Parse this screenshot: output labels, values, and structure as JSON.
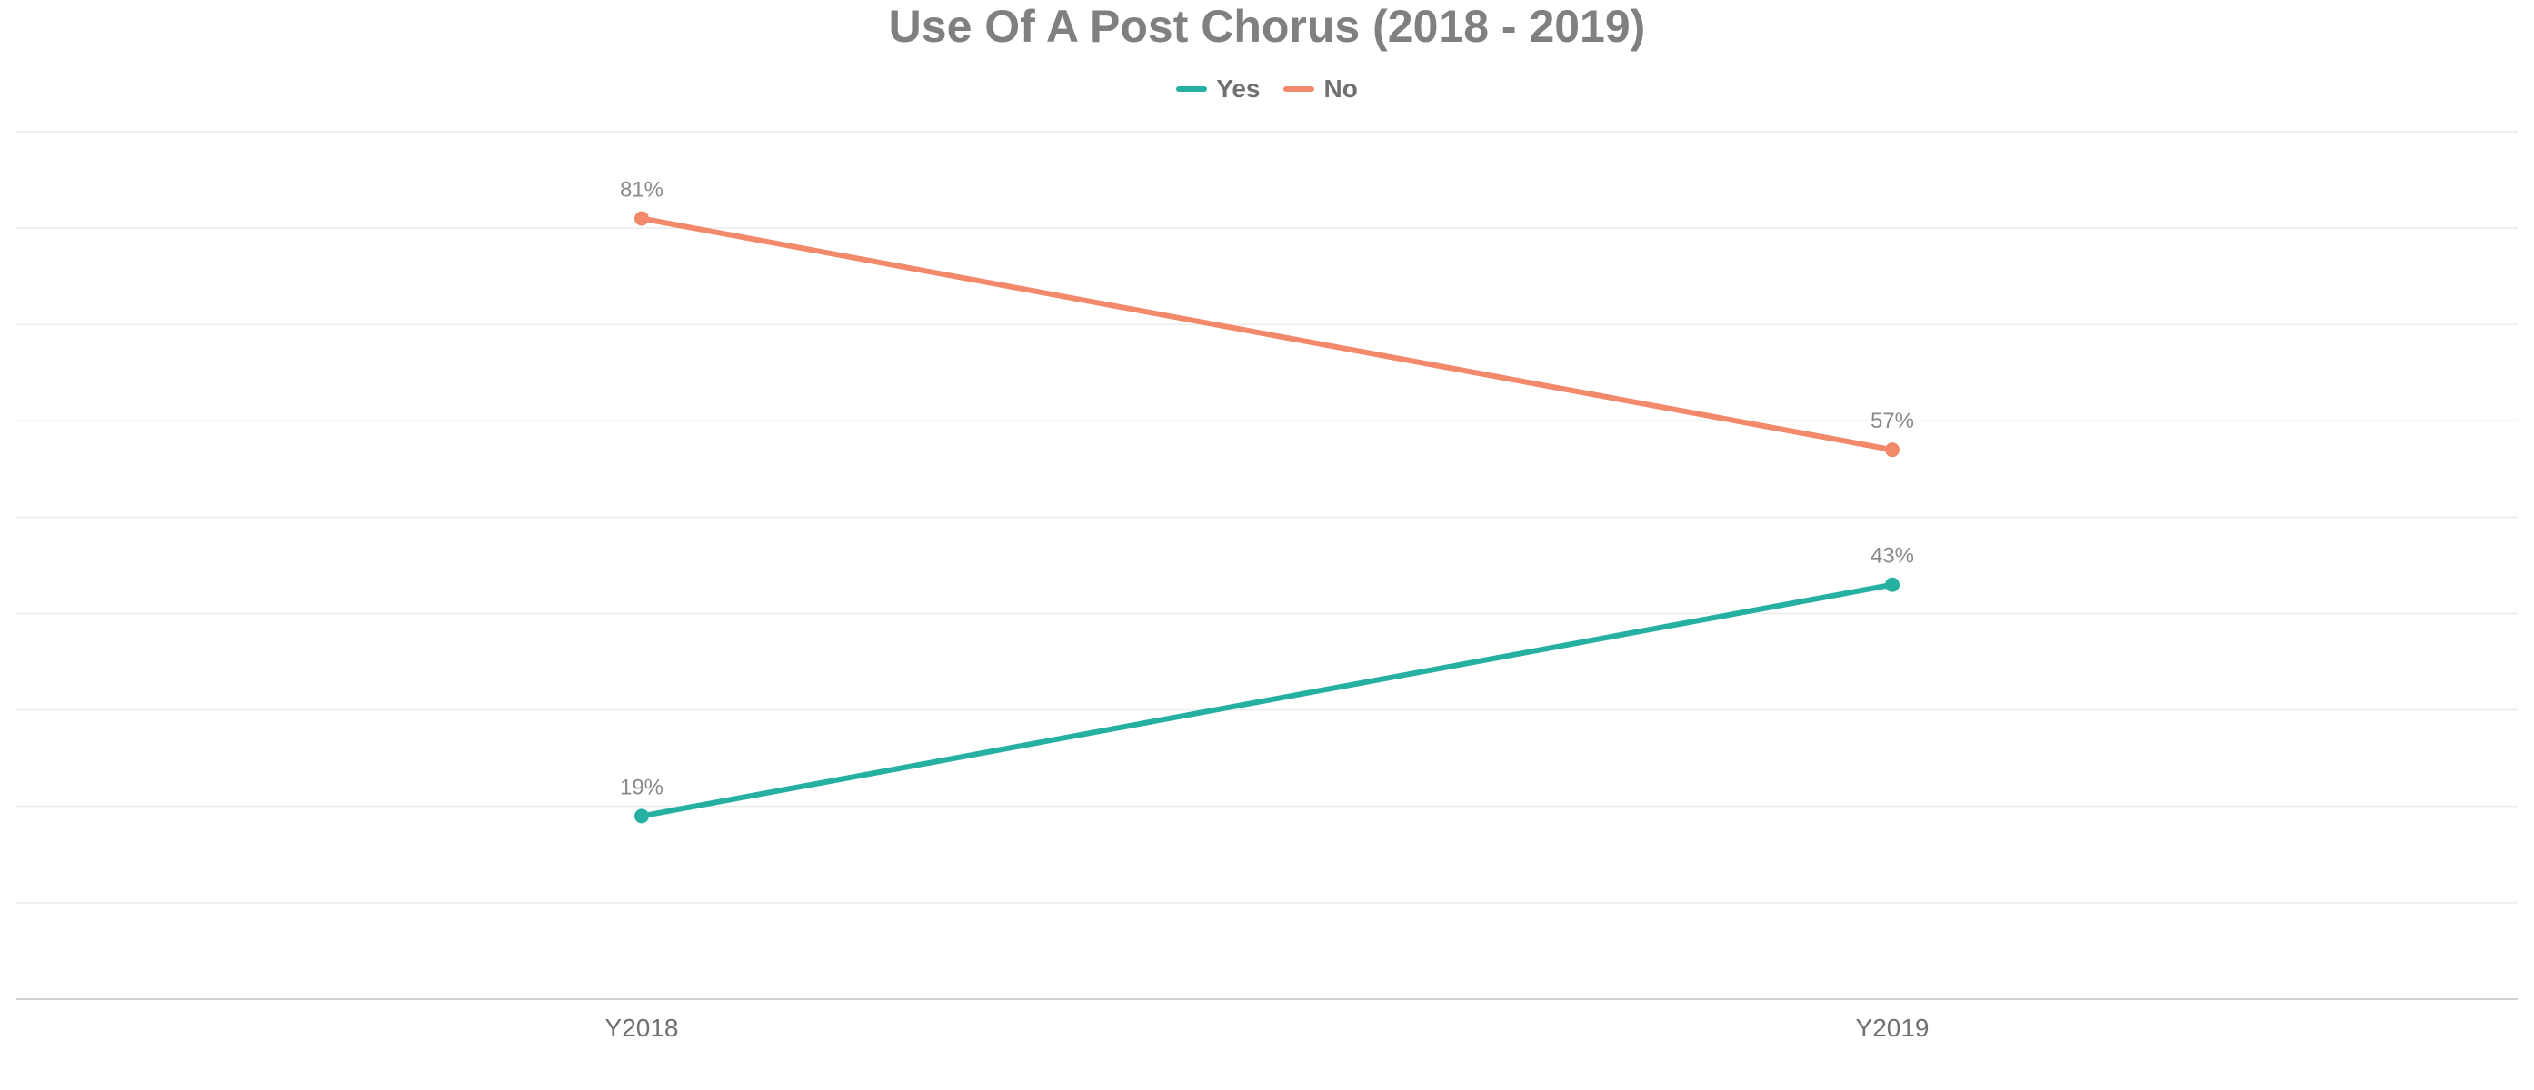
{
  "chart_data": {
    "type": "line",
    "title": "Use Of A Post Chorus (2018 - 2019)",
    "categories": [
      "Y2018",
      "Y2019"
    ],
    "series": [
      {
        "name": "Yes",
        "values": [
          19,
          43
        ],
        "labels": [
          "19%",
          "43%"
        ],
        "color": "#26b0a2"
      },
      {
        "name": "No",
        "values": [
          81,
          57
        ],
        "labels": [
          "81%",
          "57%"
        ],
        "color": "#f2896b"
      }
    ],
    "ylim": [
      0,
      90
    ],
    "grid": true,
    "legend": "top-center"
  }
}
